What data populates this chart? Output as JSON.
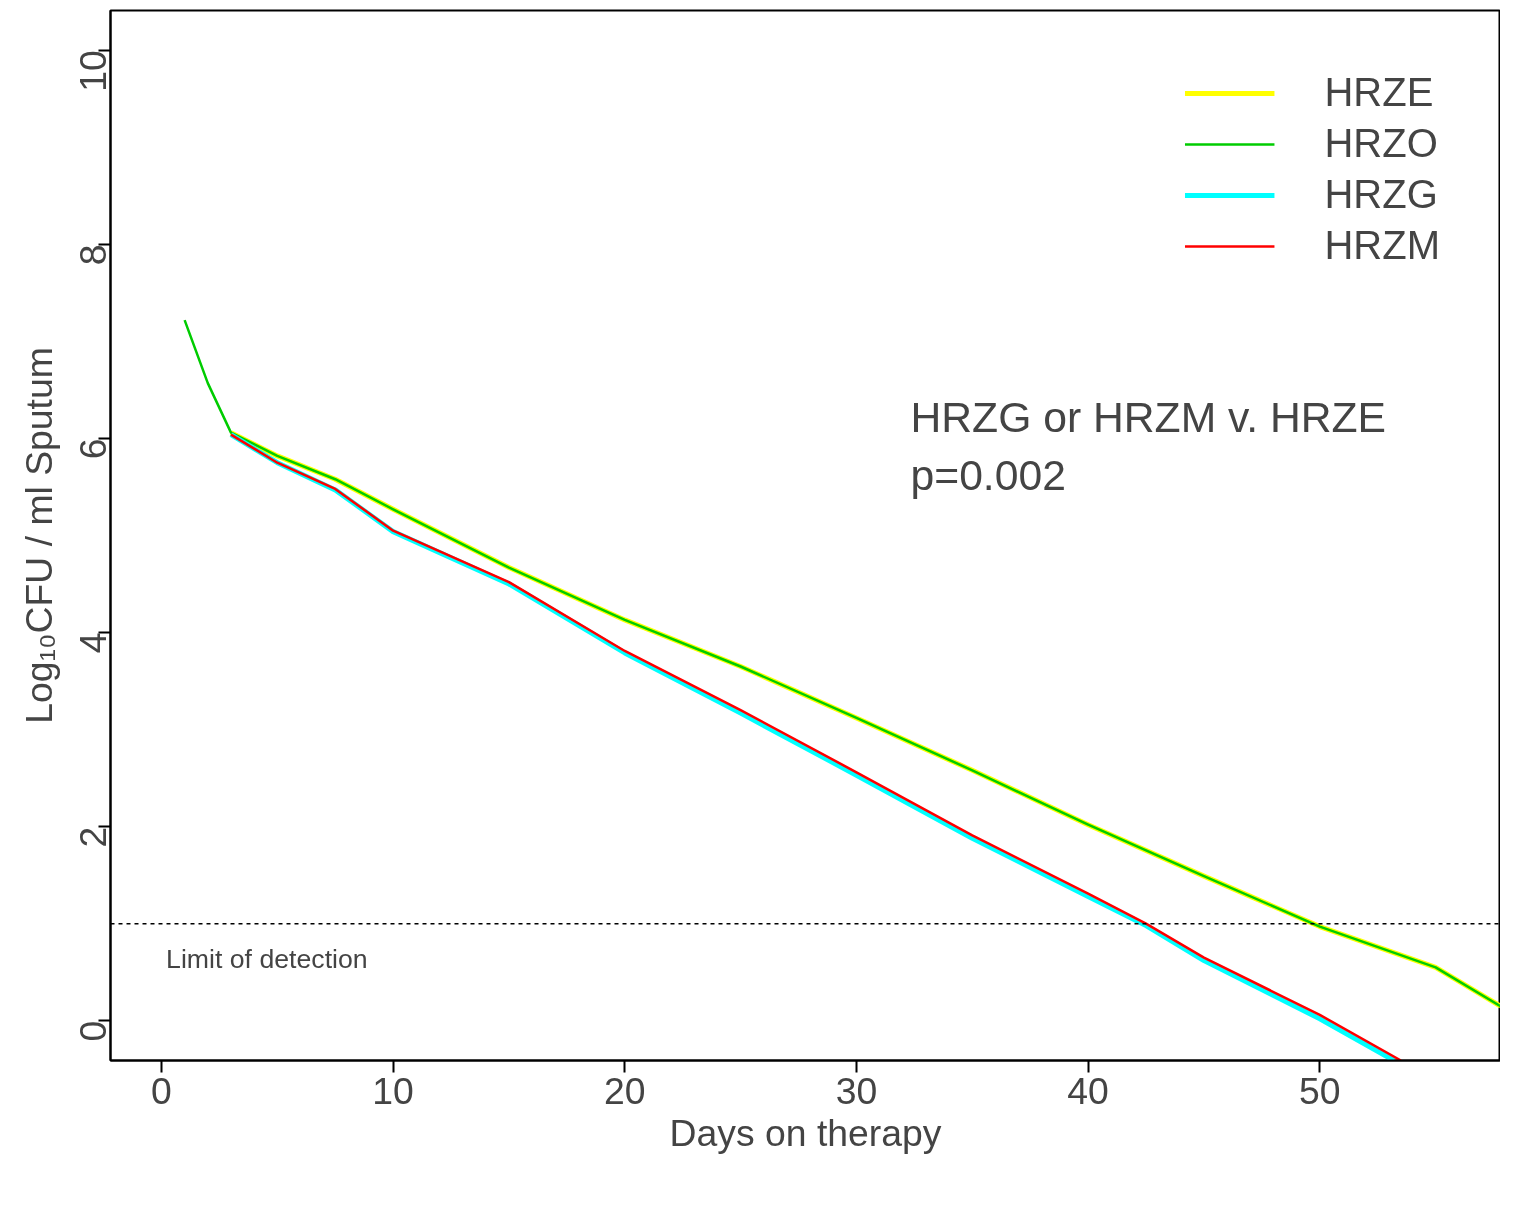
{
  "chart_data": {
    "type": "line",
    "xlabel": "Days on therapy",
    "ylabel": "Log₁₀CFU / ml Sputum",
    "xlim": [
      -2.2,
      57.8
    ],
    "ylim": [
      -0.41,
      10.41
    ],
    "xticks": [
      0,
      10,
      20,
      30,
      40,
      50
    ],
    "yticks": [
      0,
      2,
      4,
      6,
      8,
      10
    ],
    "grid": false,
    "legend": "top right",
    "line_style": "solid",
    "marker": "none",
    "series": [
      {
        "name": "HRZE",
        "color": "#ffff00",
        "x": [
          3,
          5,
          7.5,
          10,
          15,
          20,
          25,
          30,
          35,
          40,
          45,
          50,
          55,
          57.8
        ],
        "values": [
          6.06,
          5.82,
          5.58,
          5.27,
          4.67,
          4.13,
          3.65,
          3.12,
          2.58,
          2.02,
          1.49,
          0.97,
          0.55,
          0.15
        ]
      },
      {
        "name": "HRZO",
        "color": "#00cc00",
        "x": [
          1,
          2,
          3,
          5,
          7.5,
          10,
          15,
          20,
          25,
          30,
          35,
          40,
          45,
          50,
          55,
          57.8
        ],
        "values": [
          7.22,
          6.57,
          6.06,
          5.82,
          5.58,
          5.27,
          4.67,
          4.13,
          3.65,
          3.12,
          2.58,
          2.02,
          1.49,
          0.97,
          0.55,
          0.15
        ]
      },
      {
        "name": "HRZG",
        "color": "#00ffff",
        "x": [
          3,
          5,
          7.5,
          10,
          15,
          20,
          25,
          30,
          35,
          40,
          42.5,
          45,
          50,
          53.2
        ],
        "values": [
          6.04,
          5.75,
          5.47,
          5.04,
          4.5,
          3.79,
          3.17,
          2.53,
          1.88,
          1.28,
          0.98,
          0.62,
          0.02,
          -0.41
        ]
      },
      {
        "name": "HRZM",
        "color": "#ff0000",
        "x": [
          3,
          5,
          7.5,
          10,
          15,
          20,
          25,
          30,
          35,
          40,
          42.5,
          45,
          50,
          53.5
        ],
        "values": [
          6.04,
          5.75,
          5.48,
          5.05,
          4.52,
          3.81,
          3.2,
          2.56,
          1.91,
          1.31,
          1.0,
          0.65,
          0.06,
          -0.41
        ]
      }
    ],
    "ref_lines": [
      {
        "axis": "y",
        "value": 1,
        "label": "Limit of detection",
        "line_style": "dashed",
        "color": "#000000"
      }
    ],
    "annotations": [
      "HRZG or HRZM v. HRZE",
      "p=0.002"
    ]
  }
}
